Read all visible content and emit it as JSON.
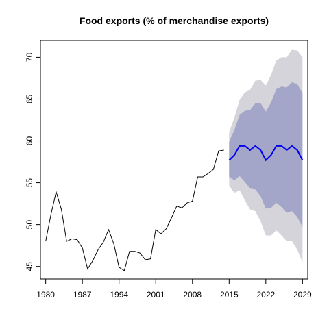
{
  "chart_data": {
    "type": "line",
    "title": "Food exports (% of merchandise exports)",
    "xlabel": "",
    "ylabel": "",
    "xlim": [
      1979,
      2030
    ],
    "ylim": [
      43.5,
      72.0
    ],
    "x_ticks": [
      1980,
      1987,
      1994,
      2001,
      2008,
      2015,
      2022,
      2029
    ],
    "y_ticks": [
      45,
      50,
      55,
      60,
      65,
      70
    ],
    "grid": false,
    "series": [
      {
        "kind": "history",
        "color": "#000000",
        "points": [
          [
            1980,
            48.0
          ],
          [
            1981,
            51.2
          ],
          [
            1982,
            53.9
          ],
          [
            1983,
            51.8
          ],
          [
            1984,
            48.0
          ],
          [
            1985,
            48.3
          ],
          [
            1986,
            48.2
          ],
          [
            1987,
            47.2
          ],
          [
            1988,
            44.7
          ],
          [
            1989,
            45.7
          ],
          [
            1990,
            47.0
          ],
          [
            1991,
            47.9
          ],
          [
            1992,
            49.4
          ],
          [
            1993,
            47.7
          ],
          [
            1994,
            44.9
          ],
          [
            1995,
            44.5
          ],
          [
            1996,
            46.8
          ],
          [
            1997,
            46.8
          ],
          [
            1998,
            46.6
          ],
          [
            1999,
            45.8
          ],
          [
            2000,
            45.9
          ],
          [
            2001,
            49.4
          ],
          [
            2002,
            48.9
          ],
          [
            2003,
            49.5
          ],
          [
            2004,
            50.8
          ],
          [
            2005,
            52.2
          ],
          [
            2006,
            52.0
          ],
          [
            2007,
            52.6
          ],
          [
            2008,
            52.8
          ],
          [
            2009,
            55.7
          ],
          [
            2010,
            55.7
          ],
          [
            2011,
            56.1
          ],
          [
            2012,
            56.6
          ],
          [
            2013,
            58.8
          ],
          [
            2014,
            58.9
          ]
        ]
      },
      {
        "kind": "forecast",
        "color": "#0000ee",
        "x": [
          2015,
          2016,
          2017,
          2018,
          2019,
          2020,
          2021,
          2022,
          2023,
          2024,
          2025,
          2026,
          2027,
          2028,
          2029
        ],
        "mean": [
          57.7,
          58.3,
          59.4,
          59.4,
          58.9,
          59.4,
          58.9,
          57.7,
          58.3,
          59.4,
          59.4,
          58.9,
          59.4,
          58.9,
          57.7
        ],
        "lo80": [
          55.7,
          55.3,
          55.8,
          55.1,
          54.3,
          54.2,
          53.4,
          51.9,
          52.0,
          52.6,
          52.1,
          51.4,
          51.6,
          50.9,
          49.7
        ],
        "hi80": [
          59.9,
          61.3,
          63.1,
          63.6,
          63.7,
          64.5,
          64.5,
          63.5,
          64.6,
          66.2,
          66.5,
          66.4,
          67.0,
          66.8,
          65.7
        ],
        "lo95": [
          54.6,
          53.8,
          54.1,
          52.9,
          51.8,
          51.6,
          50.4,
          48.7,
          48.7,
          49.3,
          48.7,
          48.0,
          48.0,
          47.0,
          45.5
        ],
        "hi95": [
          61.0,
          62.8,
          64.9,
          65.8,
          66.1,
          67.2,
          67.3,
          66.6,
          67.9,
          69.6,
          70.0,
          70.0,
          70.9,
          70.8,
          70.0
        ],
        "band80_color": "#a3a6c8",
        "band95_color": "#d4d4da"
      }
    ]
  }
}
